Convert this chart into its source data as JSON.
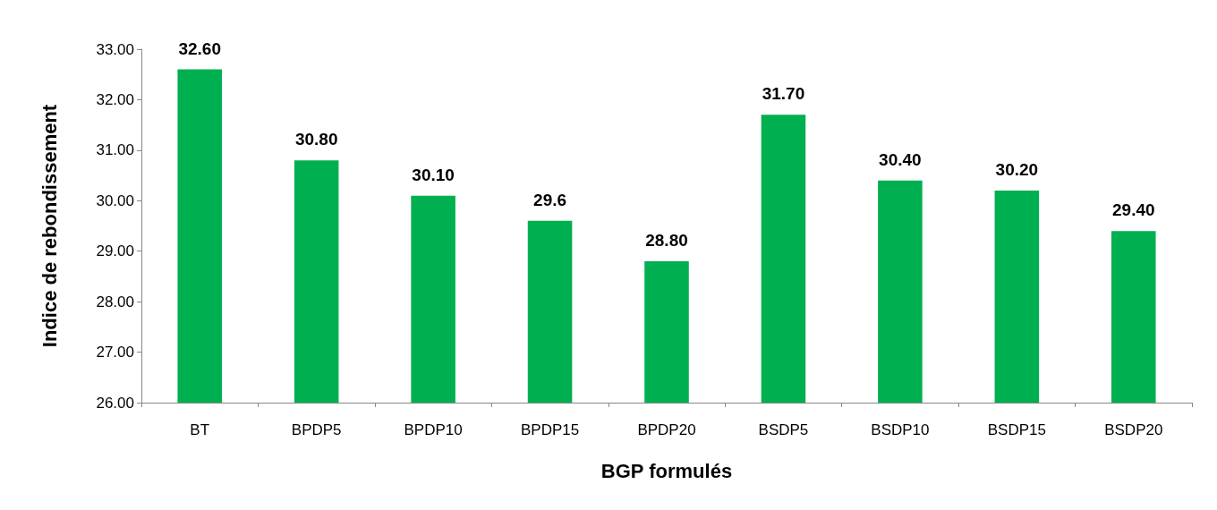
{
  "chart_data": {
    "type": "bar",
    "xlabel": "BGP formulés",
    "ylabel": "Indice de rebondissement",
    "categories": [
      "BT",
      "BPDP5",
      "BPDP10",
      "BPDP15",
      "BPDP20",
      "BSDP5",
      "BSDP10",
      "BSDP15",
      "BSDP20"
    ],
    "values": [
      32.6,
      30.8,
      30.1,
      29.6,
      28.8,
      31.7,
      30.4,
      30.2,
      29.4
    ],
    "value_labels": [
      "32.60",
      "30.80",
      "30.10",
      "29.6",
      "28.80",
      "31.70",
      "30.40",
      "30.20",
      "29.40"
    ],
    "color": "#00b050",
    "ylim": [
      26,
      33
    ],
    "yticks": [
      {
        "value": 26,
        "label": "26.00"
      },
      {
        "value": 27,
        "label": "27.00"
      },
      {
        "value": 28,
        "label": "28.00"
      },
      {
        "value": 29,
        "label": "29.00"
      },
      {
        "value": 30,
        "label": "30.00"
      },
      {
        "value": 31,
        "label": "31.00"
      },
      {
        "value": 32,
        "label": "32.00"
      },
      {
        "value": 33,
        "label": "33.00"
      }
    ],
    "grid": false
  }
}
